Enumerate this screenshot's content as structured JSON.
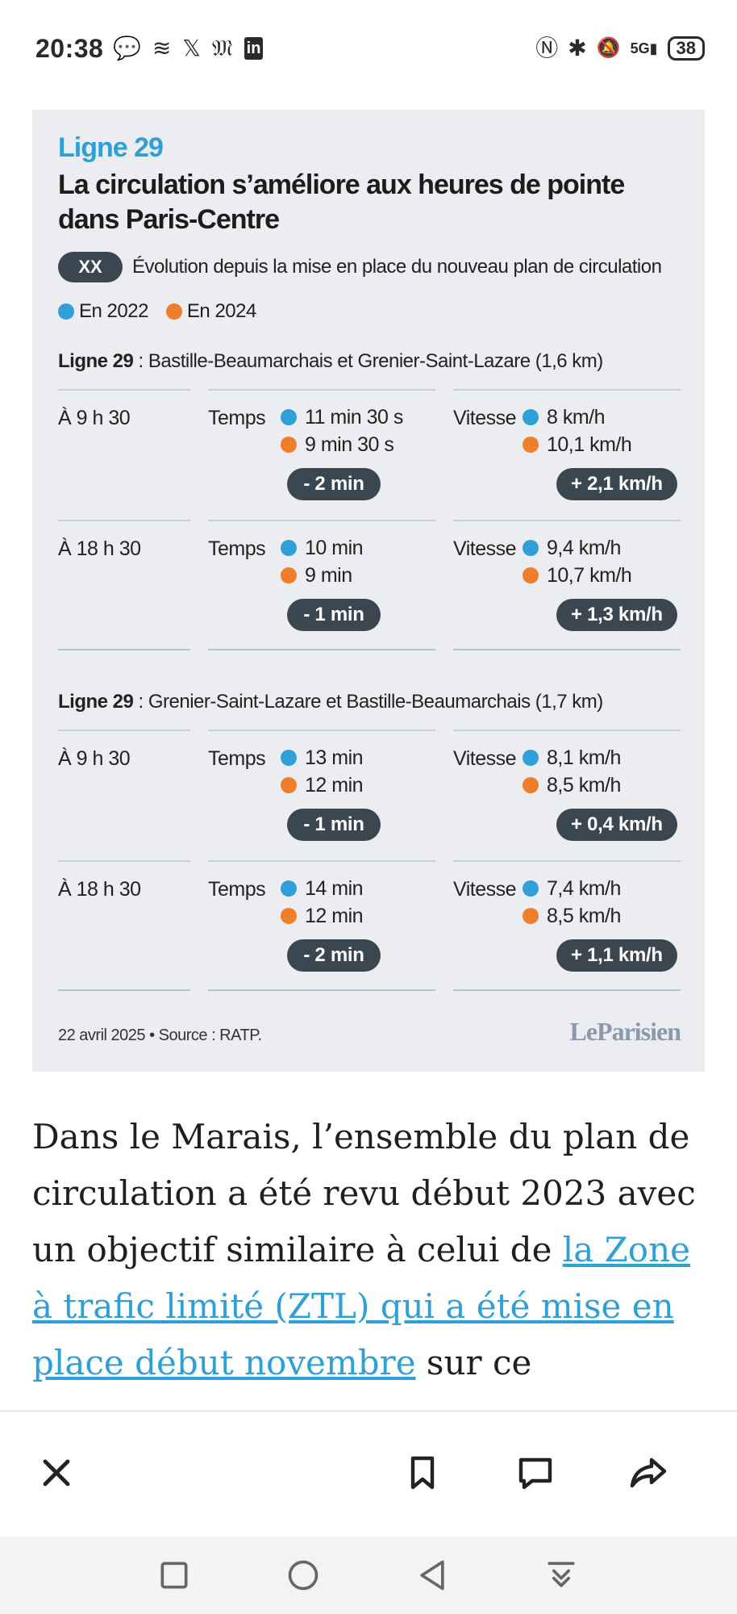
{
  "status_bar": {
    "time": "20:38",
    "left_icons": [
      "chat-bubble-icon",
      "muted-logo-icon",
      "x-icon",
      "le-monde-icon",
      "linkedin-icon"
    ],
    "left_glyphs": [
      "💬",
      "≋",
      "𝕏",
      "𝔐",
      "in"
    ],
    "right_icons": [
      "nfc-icon",
      "bluetooth-icon",
      "bell-off-icon",
      "signal-icon",
      "battery-icon"
    ],
    "right_glyphs": [
      "Ⓝ",
      "✱",
      "🔕",
      "5G▮"
    ],
    "battery": "38"
  },
  "infographic": {
    "kicker": "Ligne 29",
    "title": "La circulation s’améliore aux heures de pointe dans Paris-Centre",
    "badge_xx": "XX",
    "subtitle": "Évolution depuis la mise en place du nouveau plan de circulation",
    "legend": [
      {
        "label": "En 2022",
        "color": "#2f9fd8"
      },
      {
        "label": "En 2024",
        "color": "#f07d2a"
      }
    ],
    "col_temps": "Temps",
    "col_vitesse": "Vitesse",
    "sections": [
      {
        "line": "Ligne 29",
        "route": " : Bastille-Beaumarchais et Grenier-Saint-Lazare (1,6 km)",
        "rows": [
          {
            "time": "À 9 h 30",
            "temps_2022": "11 min 30 s",
            "temps_2024": "9 min 30 s",
            "temps_diff": "- 2 min",
            "vit_2022": "8 km/h",
            "vit_2024": "10,1 km/h",
            "vit_diff": "+ 2,1 km/h"
          },
          {
            "time": "À 18 h 30",
            "temps_2022": "10 min",
            "temps_2024": "9 min",
            "temps_diff": "- 1 min",
            "vit_2022": "9,4 km/h",
            "vit_2024": "10,7 km/h",
            "vit_diff": "+ 1,3 km/h"
          }
        ]
      },
      {
        "line": "Ligne 29",
        "route": " : Grenier-Saint-Lazare et Bastille-Beaumarchais (1,7 km)",
        "rows": [
          {
            "time": "À 9 h 30",
            "temps_2022": "13 min",
            "temps_2024": "12 min",
            "temps_diff": "- 1 min",
            "vit_2022": "8,1 km/h",
            "vit_2024": "8,5 km/h",
            "vit_diff": "+ 0,4 km/h"
          },
          {
            "time": "À 18 h 30",
            "temps_2022": "14 min",
            "temps_2024": "12 min",
            "temps_diff": "- 2 min",
            "vit_2022": "7,4 km/h",
            "vit_2024": "8,5 km/h",
            "vit_diff": "+ 1,1 km/h"
          }
        ]
      }
    ],
    "footer": "22 avril 2025 • Source : RATP.",
    "logo": "LeParisien"
  },
  "article": {
    "text_before": "Dans le Marais, l’ensemble du plan de circulation a été revu début 2023 avec un objectif similaire à celui de ",
    "link_text": "la Zone à trafic limité (ZTL) qui a été mise en place début novembre",
    "text_after": " sur ce"
  },
  "toolbar": {
    "icons": [
      "close-icon",
      "bookmark-icon",
      "comment-icon",
      "share-icon"
    ]
  },
  "navbar": {
    "icons": [
      "recents-square-icon",
      "home-circle-icon",
      "back-triangle-icon",
      "notification-drawer-icon"
    ]
  }
}
